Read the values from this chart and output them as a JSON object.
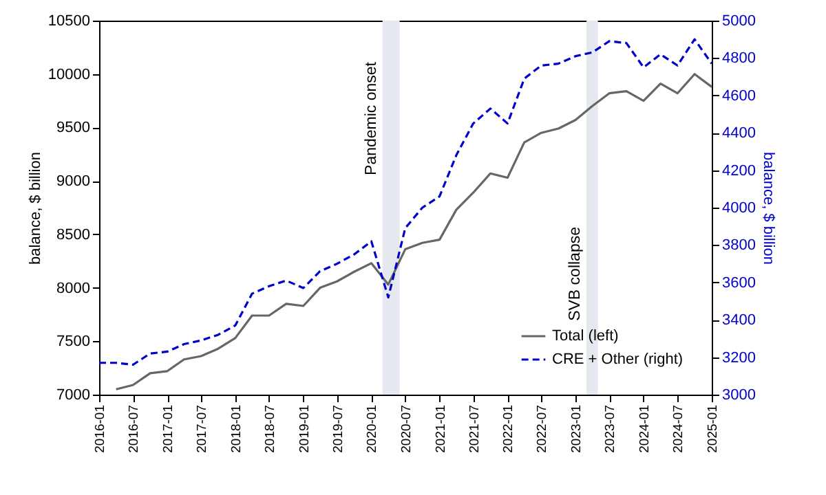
{
  "chart_data": {
    "type": "line",
    "x": [
      "2016-01",
      "2016-04",
      "2016-07",
      "2016-10",
      "2017-01",
      "2017-04",
      "2017-07",
      "2017-10",
      "2018-01",
      "2018-04",
      "2018-07",
      "2018-10",
      "2019-01",
      "2019-04",
      "2019-07",
      "2019-10",
      "2020-01",
      "2020-04",
      "2020-07",
      "2020-10",
      "2021-01",
      "2021-04",
      "2021-07",
      "2021-10",
      "2022-01",
      "2022-04",
      "2022-07",
      "2022-10",
      "2023-01",
      "2023-04",
      "2023-07",
      "2023-10",
      "2024-01",
      "2024-04",
      "2024-07",
      "2024-10",
      "2025-01"
    ],
    "series": [
      {
        "name": "Total (left)",
        "color": "#666666",
        "line_style": "solid",
        "values": [
          null,
          7050,
          7090,
          7200,
          7220,
          7330,
          7360,
          7430,
          7530,
          7740,
          7740,
          7850,
          7830,
          8000,
          8060,
          8150,
          8230,
          8030,
          8360,
          8420,
          8450,
          8730,
          8890,
          9070,
          9030,
          9360,
          9450,
          9490,
          9570,
          9700,
          9820,
          9840,
          9750,
          9910,
          9820,
          10000,
          9880
        ]
      },
      {
        "name": "CRE + Other (right)",
        "color": "#0000cc",
        "line_style": "dashed",
        "axis": "y2",
        "values": [
          3170,
          3170,
          3160,
          3220,
          3230,
          3270,
          3290,
          3320,
          3370,
          3540,
          3580,
          3610,
          3570,
          3660,
          3700,
          3750,
          3820,
          3520,
          3890,
          4000,
          4060,
          4280,
          4450,
          4530,
          4450,
          4690,
          4760,
          4770,
          4810,
          4830,
          4890,
          4880,
          4750,
          4820,
          4760,
          4900,
          4770
        ]
      }
    ],
    "ylabel": "balance, $ billion",
    "y2label": "balance, $ billion",
    "xlim": [
      "2016-01",
      "2025-01"
    ],
    "xticks": [
      "2016-01",
      "2016-07",
      "2017-01",
      "2017-07",
      "2018-01",
      "2018-07",
      "2019-01",
      "2019-07",
      "2020-01",
      "2020-07",
      "2021-01",
      "2021-07",
      "2022-01",
      "2022-07",
      "2023-01",
      "2023-07",
      "2024-01",
      "2024-07",
      "2025-01"
    ],
    "ylim": [
      7000,
      10500
    ],
    "yticks": [
      7000,
      7500,
      8000,
      8500,
      9000,
      9500,
      10000,
      10500
    ],
    "y2lim": [
      3000,
      5000
    ],
    "y2ticks": [
      3000,
      3200,
      3400,
      3600,
      3800,
      4000,
      4200,
      4400,
      4600,
      4800,
      5000
    ],
    "bands": [
      {
        "axis": "x",
        "from": "2020-03",
        "to": "2020-06",
        "label": "Pandemic onset",
        "color": "#e5e9ef"
      },
      {
        "axis": "x",
        "from": "2023-03",
        "to": "2023-05",
        "label": "SVB collapse",
        "color": "#e5e9ef"
      }
    ],
    "legend": "bottom right"
  }
}
